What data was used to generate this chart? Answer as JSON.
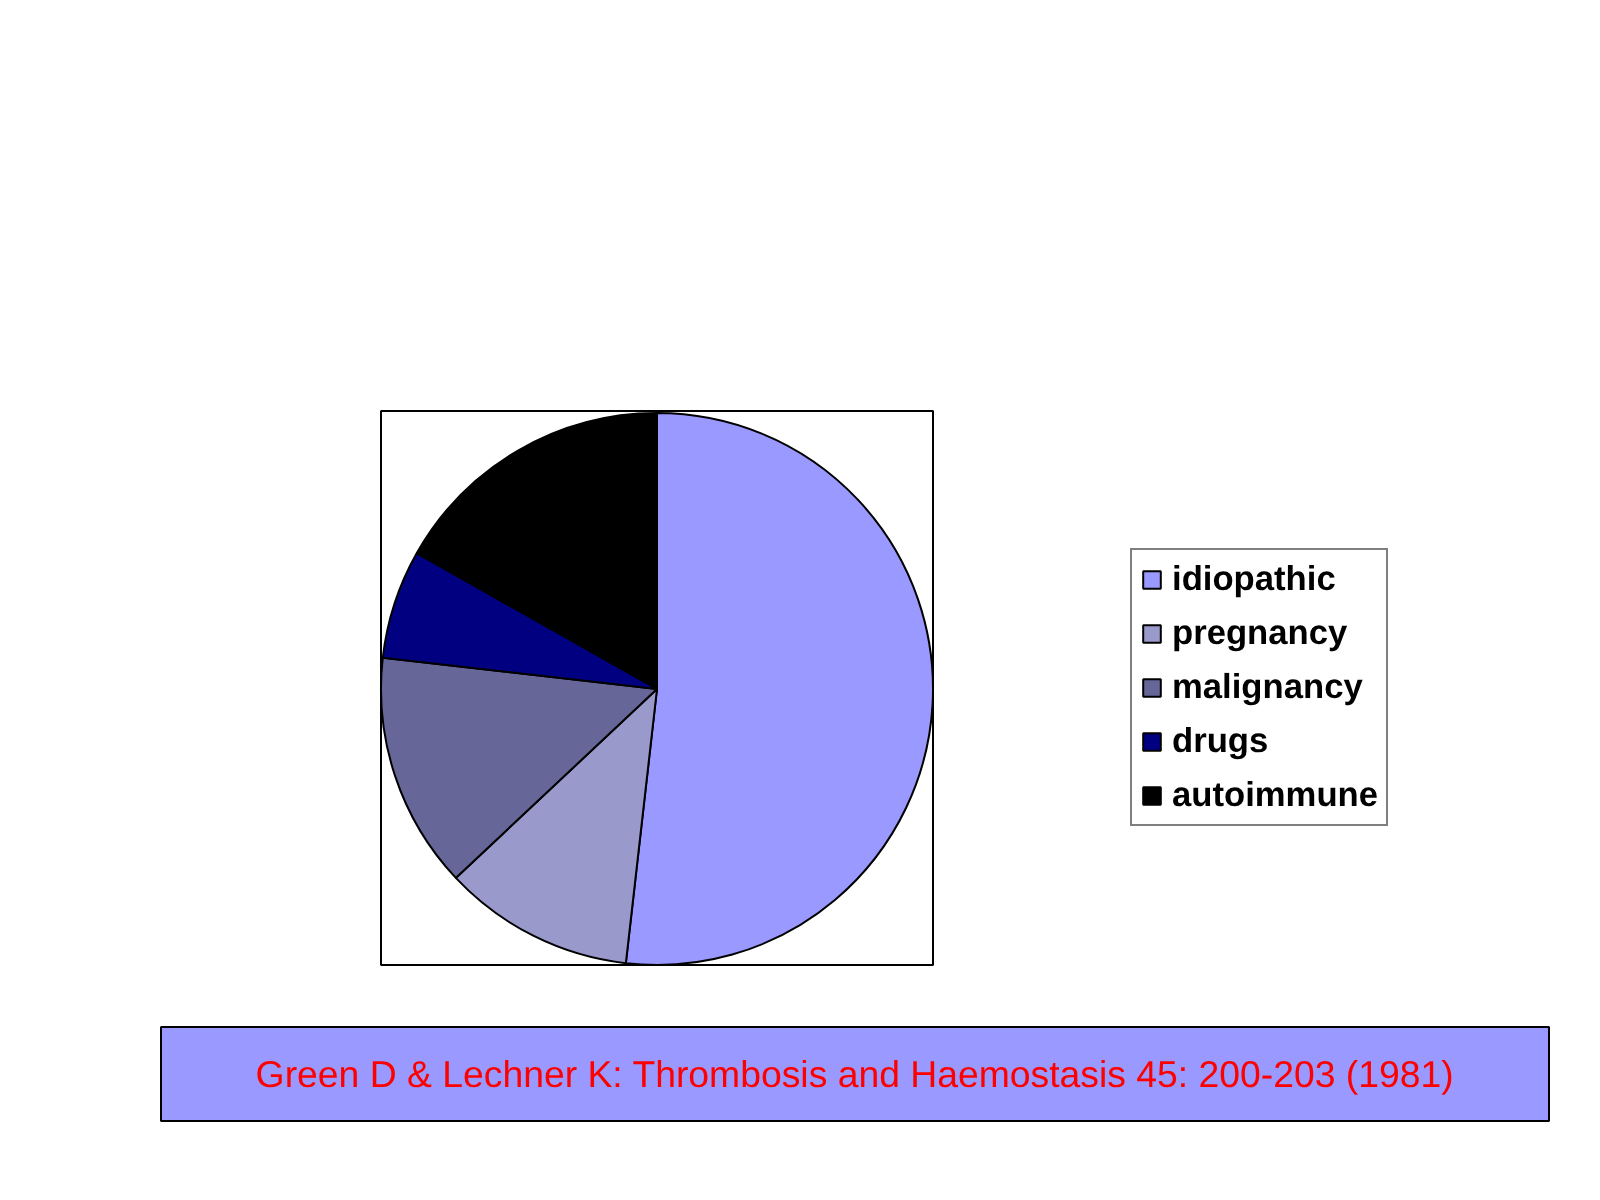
{
  "chart_data": {
    "type": "pie",
    "categories": [
      "idiopathic",
      "pregnancy",
      "malignancy",
      "drugs",
      "autoimmune"
    ],
    "values": [
      51.8,
      11.2,
      13.8,
      6.4,
      16.8
    ],
    "colors": [
      "#9999ff",
      "#9999cc",
      "#666699",
      "#000080",
      "#000000"
    ],
    "legend": "right",
    "annotations": [
      "Green D & Lechner K: Thrombosis and Haemostasis 45: 200-203 (1981)"
    ]
  }
}
